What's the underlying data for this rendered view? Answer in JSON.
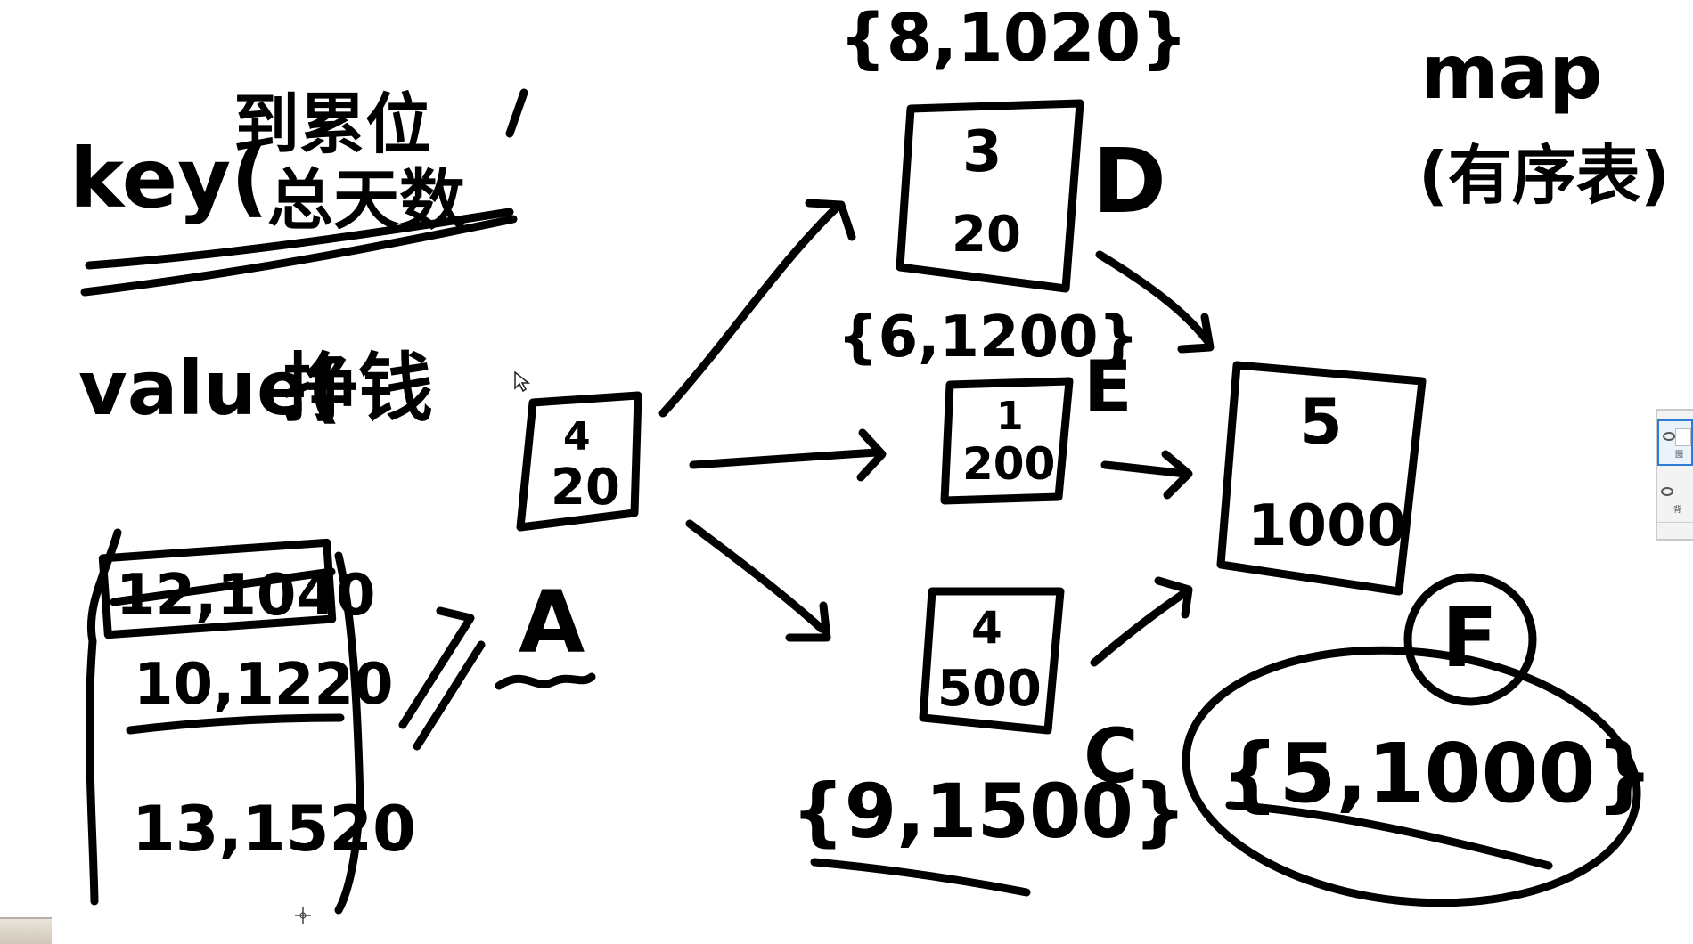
{
  "whiteboard": {
    "left_notes": {
      "key_label": "key(",
      "key_line1": "到累位",
      "key_line2": "总天数",
      "value_label": "value(",
      "value_text": "挣钱"
    },
    "map_note": {
      "title": "map",
      "subtitle": "(有序表)"
    },
    "stack": {
      "items": [
        "12,1040",
        "10,1220",
        "13,1520"
      ]
    },
    "start_label": "A",
    "nodes": {
      "A": {
        "days": "4",
        "money": "20"
      },
      "D": {
        "label": "D",
        "days": "3",
        "money": "20",
        "pair": "{8,1020}"
      },
      "E": {
        "label": "E",
        "days": "1",
        "money": "200",
        "pair": "{6,1200}"
      },
      "C": {
        "label": "C",
        "days": "4",
        "money": "500",
        "pair": "{9,1500}"
      },
      "F": {
        "label": "F",
        "days": "5",
        "money": "1000",
        "pair": "{5,1000}"
      }
    }
  },
  "layers_panel": {
    "layer1": "图",
    "layer2": "背"
  }
}
